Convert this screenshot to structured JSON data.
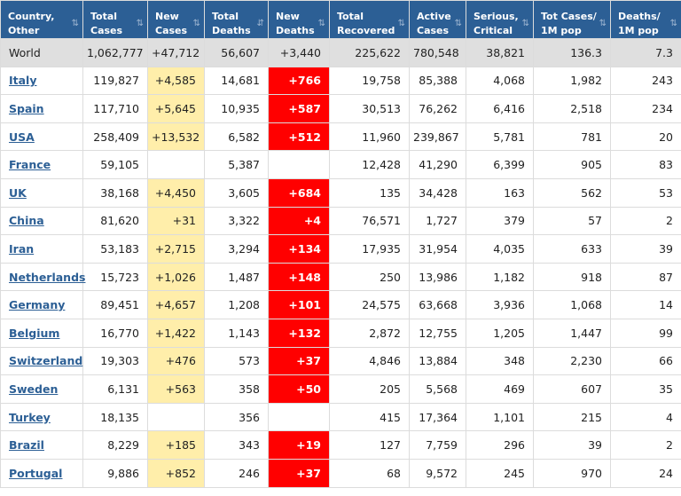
{
  "colors": {
    "header_bg": "#2c5f95",
    "world_row_bg": "#dfdfdf",
    "new_cases_highlight": "#ffeeaa",
    "new_deaths_highlight": "#ff0000",
    "link": "#2c5f95"
  },
  "icons": {
    "sort": "sort-arrows-icon"
  },
  "headers": [
    "Country,\nOther",
    "Total\nCases",
    "New\nCases",
    "Total\nDeaths",
    "New\nDeaths",
    "Total\nRecovered",
    "Active\nCases",
    "Serious,\nCritical",
    "Tot Cases/\n1M pop",
    "Deaths/\n1M pop"
  ],
  "sort_glyphs": [
    "⇅",
    "⇅",
    "⇅",
    "⇵",
    "⇅",
    "⇅",
    "⇅",
    "⇅",
    "⇅",
    "⇅"
  ],
  "world": [
    "World",
    "1,062,777",
    "+47,712",
    "56,607",
    "+3,440",
    "225,622",
    "780,548",
    "38,821",
    "136.3",
    "7.3"
  ],
  "rows": [
    [
      "Italy",
      "119,827",
      "+4,585",
      "14,681",
      "+766",
      "19,758",
      "85,388",
      "4,068",
      "1,982",
      "243"
    ],
    [
      "Spain",
      "117,710",
      "+5,645",
      "10,935",
      "+587",
      "30,513",
      "76,262",
      "6,416",
      "2,518",
      "234"
    ],
    [
      "USA",
      "258,409",
      "+13,532",
      "6,582",
      "+512",
      "11,960",
      "239,867",
      "5,781",
      "781",
      "20"
    ],
    [
      "France",
      "59,105",
      "",
      "5,387",
      "",
      "12,428",
      "41,290",
      "6,399",
      "905",
      "83"
    ],
    [
      "UK",
      "38,168",
      "+4,450",
      "3,605",
      "+684",
      "135",
      "34,428",
      "163",
      "562",
      "53"
    ],
    [
      "China",
      "81,620",
      "+31",
      "3,322",
      "+4",
      "76,571",
      "1,727",
      "379",
      "57",
      "2"
    ],
    [
      "Iran",
      "53,183",
      "+2,715",
      "3,294",
      "+134",
      "17,935",
      "31,954",
      "4,035",
      "633",
      "39"
    ],
    [
      "Netherlands",
      "15,723",
      "+1,026",
      "1,487",
      "+148",
      "250",
      "13,986",
      "1,182",
      "918",
      "87"
    ],
    [
      "Germany",
      "89,451",
      "+4,657",
      "1,208",
      "+101",
      "24,575",
      "63,668",
      "3,936",
      "1,068",
      "14"
    ],
    [
      "Belgium",
      "16,770",
      "+1,422",
      "1,143",
      "+132",
      "2,872",
      "12,755",
      "1,205",
      "1,447",
      "99"
    ],
    [
      "Switzerland",
      "19,303",
      "+476",
      "573",
      "+37",
      "4,846",
      "13,884",
      "348",
      "2,230",
      "66"
    ],
    [
      "Sweden",
      "6,131",
      "+563",
      "358",
      "+50",
      "205",
      "5,568",
      "469",
      "607",
      "35"
    ],
    [
      "Turkey",
      "18,135",
      "",
      "356",
      "",
      "415",
      "17,364",
      "1,101",
      "215",
      "4"
    ],
    [
      "Brazil",
      "8,229",
      "+185",
      "343",
      "+19",
      "127",
      "7,759",
      "296",
      "39",
      "2"
    ],
    [
      "Portugal",
      "9,886",
      "+852",
      "246",
      "+37",
      "68",
      "9,572",
      "245",
      "970",
      "24"
    ]
  ]
}
